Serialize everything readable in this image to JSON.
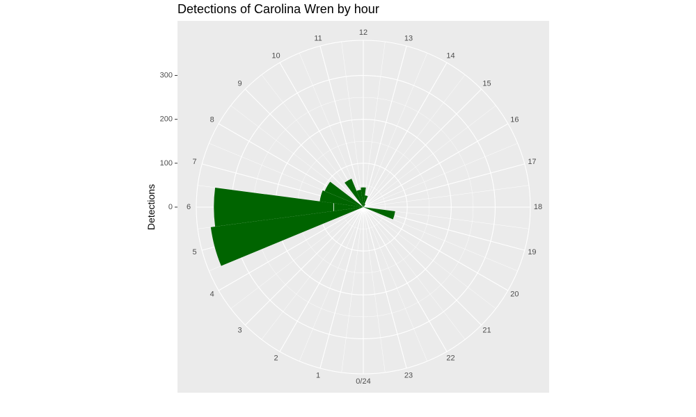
{
  "chart_data": {
    "type": "bar",
    "polar": true,
    "title": "Detections of Carolina Wren by hour",
    "ylabel": "Detections",
    "xlabel": "",
    "categories": [
      "0/24",
      "1",
      "2",
      "3",
      "4",
      "5",
      "6",
      "7",
      "8",
      "9",
      "10",
      "11",
      "12",
      "13",
      "14",
      "15",
      "16",
      "17",
      "18",
      "19",
      "20",
      "21",
      "22",
      "23"
    ],
    "values": [
      0,
      0,
      0,
      0,
      0,
      350,
      340,
      100,
      95,
      0,
      70,
      40,
      45,
      27,
      8,
      4,
      0,
      0,
      0,
      73,
      0,
      0,
      0,
      0
    ],
    "minor_values": [
      0,
      0,
      0,
      0,
      0,
      0,
      68,
      0,
      0,
      0,
      0,
      0,
      0,
      0,
      0,
      0,
      0,
      0,
      0,
      0,
      0,
      0,
      0,
      0
    ],
    "yticks": [
      0,
      100,
      200,
      300
    ],
    "ylim": [
      0,
      380
    ],
    "bar_color": "#006400",
    "panel_color": "#ebebeb",
    "grid_color": "#ffffff",
    "grid": true,
    "legend": "none"
  }
}
